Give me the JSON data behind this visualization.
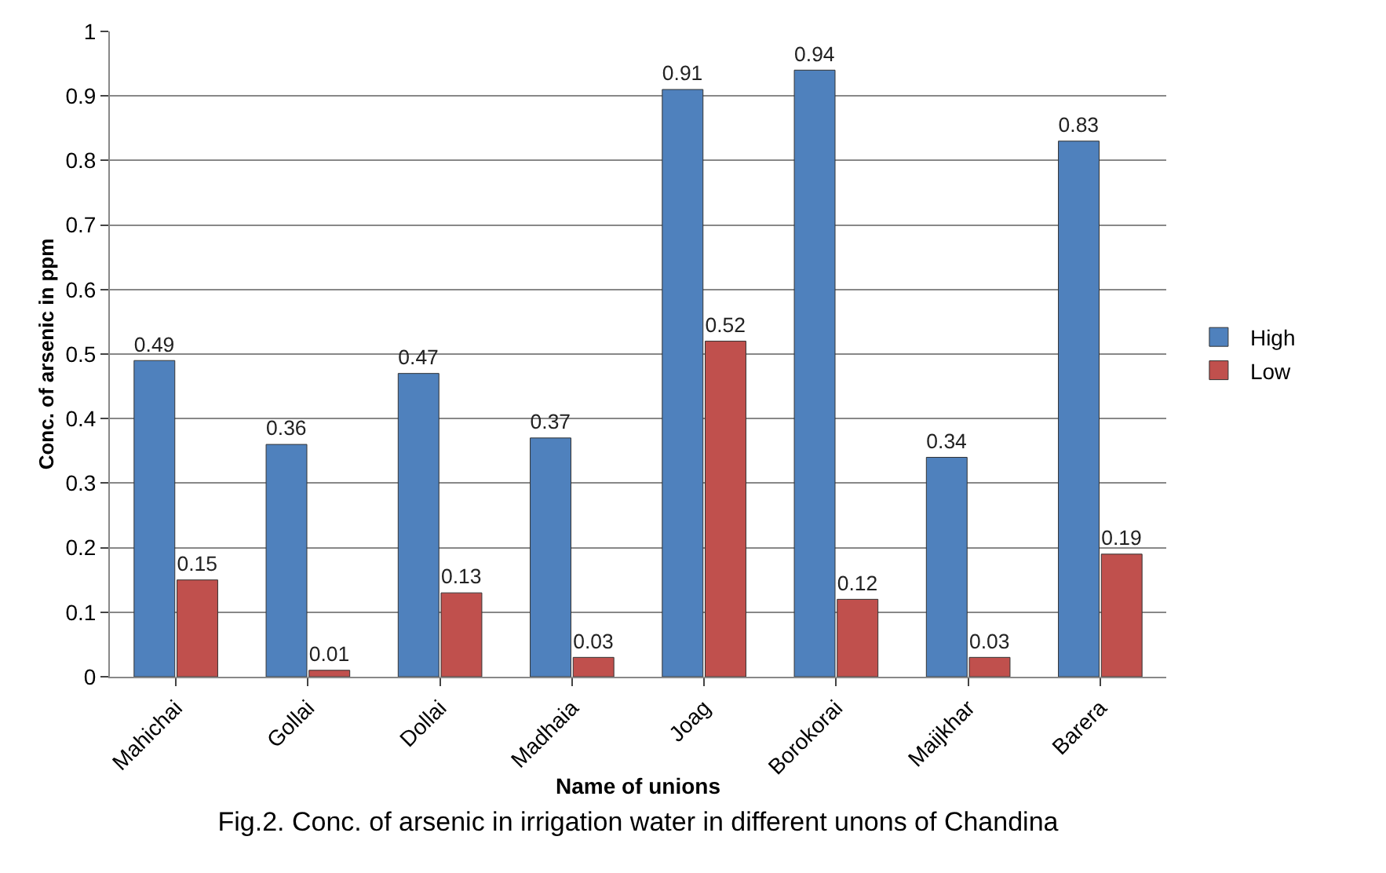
{
  "chart_data": {
    "type": "bar",
    "title": "Fig.2. Conc. of arsenic in irrigation water in different unons of Chandina",
    "xlabel": "Name of unions",
    "ylabel": "Conc. of arsenic in ppm",
    "categories": [
      "Mahichai",
      "Gollai",
      "Dollai",
      "Madhaia",
      "Joag",
      "Borokorai",
      "Maijkhar",
      "Barera"
    ],
    "series": [
      {
        "name": "High",
        "color": "#4f81bd",
        "values": [
          0.49,
          0.36,
          0.47,
          0.37,
          0.91,
          0.94,
          0.34,
          0.83
        ]
      },
      {
        "name": "Low",
        "color": "#c0504d",
        "values": [
          0.15,
          0.01,
          0.13,
          0.03,
          0.52,
          0.12,
          0.03,
          0.19
        ]
      }
    ],
    "ylim": [
      0,
      1
    ],
    "yticks": [
      0,
      0.1,
      0.2,
      0.3,
      0.4,
      0.5,
      0.6,
      0.7,
      0.8,
      0.9,
      1
    ],
    "grid": "y",
    "legend": "right",
    "data_labels": true
  }
}
